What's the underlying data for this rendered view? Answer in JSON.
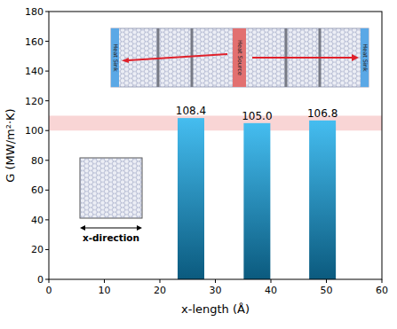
{
  "chart_data": {
    "type": "bar",
    "x_label": "x-length (Å)",
    "y_label": "G (MW/m²·K)",
    "x": [
      25.6,
      37.5,
      49.3
    ],
    "values": [
      108.4,
      105.0,
      106.8
    ],
    "value_labels": [
      "108.4",
      "105.0",
      "106.8"
    ],
    "data_labels": true,
    "color": "#45bdf0",
    "xlim": [
      0,
      60
    ],
    "xticks": [
      0,
      10,
      20,
      30,
      40,
      50,
      60
    ],
    "ylim": [
      0,
      180
    ],
    "yticks": [
      0,
      20,
      40,
      60,
      80,
      100,
      120,
      140,
      160,
      180
    ],
    "highlight_band": [
      100,
      110
    ],
    "annotations": [
      "Heat Sink",
      "Heat Source",
      "Heat Sink",
      "x-direction"
    ]
  }
}
